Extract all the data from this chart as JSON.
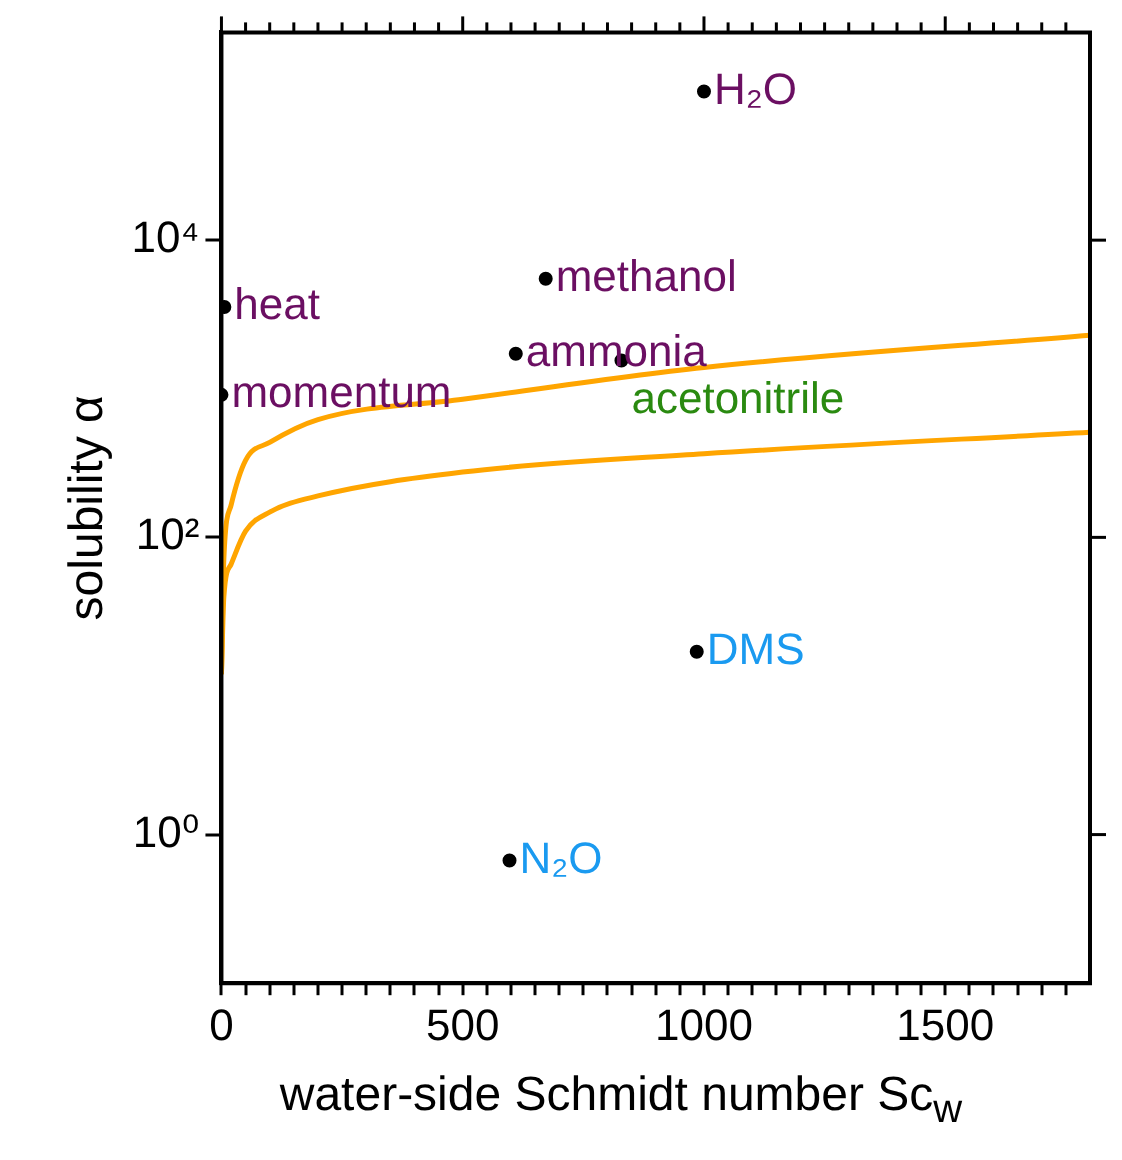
{
  "chart_data": {
    "type": "scatter",
    "xlabel": "water-side Schmidt number Sc$_{w}$",
    "ylabel": "solubility α",
    "log": "y",
    "grid": false,
    "legend": false,
    "marker": "circle",
    "xlim": [
      0,
      1800
    ],
    "xticks": [
      0,
      {
        "value": 50,
        "label": null
      },
      {
        "value": 100,
        "label": null
      },
      {
        "value": 150,
        "label": null
      },
      {
        "value": 200,
        "label": null
      },
      {
        "value": 250,
        "label": null
      },
      {
        "value": 300,
        "label": null
      },
      {
        "value": 350,
        "label": null
      },
      {
        "value": 400,
        "label": null
      },
      {
        "value": 450,
        "label": null
      },
      500,
      {
        "value": 550,
        "label": null
      },
      {
        "value": 600,
        "label": null
      },
      {
        "value": 650,
        "label": null
      },
      {
        "value": 700,
        "label": null
      },
      {
        "value": 750,
        "label": null
      },
      {
        "value": 800,
        "label": null
      },
      {
        "value": 850,
        "label": null
      },
      {
        "value": 900,
        "label": null
      },
      {
        "value": 950,
        "label": null
      },
      1000,
      {
        "value": 1050,
        "label": null
      },
      {
        "value": 1100,
        "label": null
      },
      {
        "value": 1150,
        "label": null
      },
      {
        "value": 1200,
        "label": null
      },
      {
        "value": 1250,
        "label": null
      },
      {
        "value": 1300,
        "label": null
      },
      {
        "value": 1350,
        "label": null
      },
      {
        "value": 1400,
        "label": null
      },
      {
        "value": 1450,
        "label": null
      },
      1500,
      {
        "value": 1550,
        "label": null
      },
      {
        "value": 1600,
        "label": null
      },
      {
        "value": 1650,
        "label": null
      },
      {
        "value": 1700,
        "label": null
      },
      {
        "value": 1750,
        "label": null
      }
    ],
    "ylim": [
      0.1,
      250000
    ],
    "yticks": [
      {
        "value": 1,
        "label": "10⁰"
      },
      {
        "value": 100,
        "label": "10²"
      },
      {
        "value": 10000,
        "label": "10⁴"
      }
    ],
    "series": [
      {
        "type": "line",
        "marker": "none",
        "color": "#ffa500",
        "x": [
          0,
          5,
          20,
          50,
          100,
          200,
          500,
          1000,
          1800
        ],
        "values": [
          12,
          72,
          165,
          330,
          435,
          620,
          850,
          1390,
          2290
        ]
      },
      {
        "type": "line",
        "marker": "none",
        "color": "#ffa500",
        "x": [
          0,
          5,
          20,
          50,
          100,
          200,
          500,
          1000,
          1800
        ],
        "values": [
          12,
          40,
          66,
          110,
          148,
          190,
          275,
          365,
          510
        ]
      },
      {
        "color": "#000000",
        "x": [
          1000,
          672,
          6,
          610,
          829,
          0,
          985,
          597
        ],
        "values": [
          100000,
          5500,
          3550,
          1720,
          1550,
          910,
          17,
          0.67
        ]
      }
    ],
    "annotations": [
      {
        "text": "H₂O",
        "x": 1000,
        "y": 100000
      },
      {
        "text": "methanol",
        "x": 672,
        "y": 5500
      },
      {
        "text": "heat",
        "x": 6,
        "y": 3550
      },
      {
        "text": "ammonia",
        "x": 610,
        "y": 1720
      },
      {
        "text": "acetonitrile",
        "x": 829,
        "y": 1550
      },
      {
        "text": "momentum",
        "x": 0,
        "y": 910
      },
      {
        "text": "DMS",
        "x": 985,
        "y": 17
      },
      {
        "text": "N₂O",
        "x": 597,
        "y": 0.67
      }
    ]
  }
}
